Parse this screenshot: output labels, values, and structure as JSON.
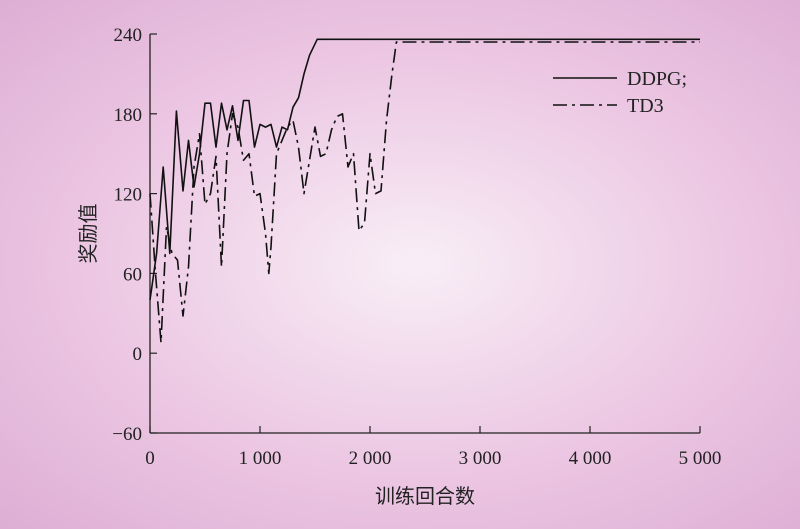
{
  "chart_data": {
    "type": "line",
    "title": "",
    "xlabel": "训练回合数",
    "ylabel": "奖励值",
    "xlim": [
      0,
      5000
    ],
    "ylim": [
      -60,
      240
    ],
    "x_ticks": [
      0,
      1000,
      2000,
      3000,
      4000,
      5000
    ],
    "x_tick_labels": [
      "0",
      "1 000",
      "2 000",
      "3 000",
      "4 000",
      "5 000"
    ],
    "y_ticks": [
      -60,
      0,
      60,
      120,
      180,
      240
    ],
    "y_tick_labels": [
      "−60",
      "0",
      "60",
      "120",
      "180",
      "240"
    ],
    "grid": false,
    "legend_position": "top-right",
    "series": [
      {
        "name": "DDPG;",
        "style": "solid",
        "color": "#111111",
        "points": [
          [
            0,
            40
          ],
          [
            60,
            75
          ],
          [
            120,
            140
          ],
          [
            180,
            75
          ],
          [
            240,
            182
          ],
          [
            300,
            122
          ],
          [
            350,
            160
          ],
          [
            400,
            125
          ],
          [
            450,
            150
          ],
          [
            500,
            188
          ],
          [
            550,
            188
          ],
          [
            600,
            155
          ],
          [
            650,
            188
          ],
          [
            700,
            168
          ],
          [
            750,
            186
          ],
          [
            800,
            160
          ],
          [
            850,
            190
          ],
          [
            900,
            190
          ],
          [
            950,
            155
          ],
          [
            1000,
            172
          ],
          [
            1050,
            170
          ],
          [
            1100,
            172
          ],
          [
            1150,
            155
          ],
          [
            1200,
            170
          ],
          [
            1250,
            168
          ],
          [
            1300,
            185
          ],
          [
            1350,
            192
          ],
          [
            1400,
            210
          ],
          [
            1450,
            224
          ],
          [
            1520,
            236
          ],
          [
            5000,
            236
          ]
        ]
      },
      {
        "name": "TD3",
        "style": "dashdot",
        "color": "#111111",
        "points": [
          [
            0,
            120
          ],
          [
            50,
            60
          ],
          [
            100,
            8
          ],
          [
            150,
            95
          ],
          [
            200,
            75
          ],
          [
            250,
            70
          ],
          [
            300,
            28
          ],
          [
            350,
            65
          ],
          [
            400,
            140
          ],
          [
            450,
            165
          ],
          [
            500,
            112
          ],
          [
            550,
            120
          ],
          [
            600,
            148
          ],
          [
            650,
            65
          ],
          [
            700,
            150
          ],
          [
            750,
            180
          ],
          [
            800,
            170
          ],
          [
            850,
            145
          ],
          [
            900,
            150
          ],
          [
            950,
            118
          ],
          [
            1000,
            120
          ],
          [
            1050,
            90
          ],
          [
            1080,
            60
          ],
          [
            1100,
            80
          ],
          [
            1150,
            150
          ],
          [
            1200,
            160
          ],
          [
            1250,
            170
          ],
          [
            1300,
            175
          ],
          [
            1350,
            155
          ],
          [
            1400,
            120
          ],
          [
            1450,
            145
          ],
          [
            1500,
            170
          ],
          [
            1550,
            148
          ],
          [
            1600,
            150
          ],
          [
            1650,
            168
          ],
          [
            1700,
            178
          ],
          [
            1750,
            180
          ],
          [
            1800,
            140
          ],
          [
            1850,
            150
          ],
          [
            1900,
            92
          ],
          [
            1950,
            98
          ],
          [
            2000,
            150
          ],
          [
            2050,
            120
          ],
          [
            2100,
            122
          ],
          [
            2150,
            175
          ],
          [
            2200,
            210
          ],
          [
            2240,
            234
          ],
          [
            5000,
            234
          ]
        ]
      }
    ]
  }
}
